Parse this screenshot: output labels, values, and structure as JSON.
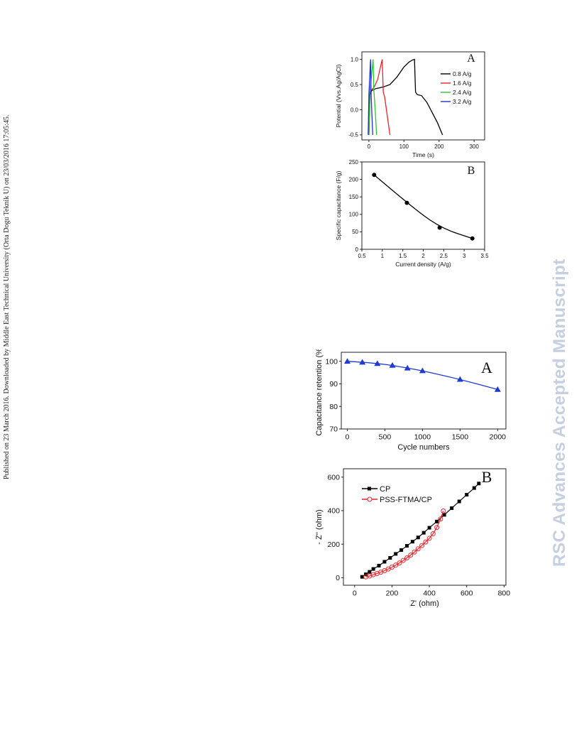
{
  "side_note": "Published on 23 March 2016. Downloaded by Middle East Technical University (Orta Dogu Teknik U) on 23/03/2016 17:05:45.",
  "watermark": "RSC Advances Accepted Manuscript",
  "chart_data": [
    {
      "id": "fig1a",
      "panel_label": "A",
      "type": "line",
      "xlabel": "Time (s)",
      "ylabel": "Potential (Vvs.Ag/AgCl)",
      "xlim": [
        -20,
        330
      ],
      "ylim": [
        -0.6,
        1.15
      ],
      "xticks": [
        0,
        100,
        200,
        300
      ],
      "yticks": [
        -0.5,
        0.0,
        0.5,
        1.0
      ],
      "ytick_labels": [
        "-0.5",
        "0.0",
        "0.5",
        "1.0"
      ],
      "legend_position": "top-right",
      "series": [
        {
          "name": "0.8 A/g",
          "color": "#000000",
          "x": [
            0,
            3,
            8,
            20,
            40,
            60,
            80,
            100,
            115,
            125,
            130,
            133,
            138,
            150,
            165,
            180,
            195,
            210
          ],
          "y": [
            -0.5,
            0.3,
            0.38,
            0.42,
            0.45,
            0.5,
            0.65,
            0.85,
            0.95,
            0.99,
            1.0,
            0.35,
            0.3,
            0.28,
            0.15,
            -0.05,
            -0.25,
            -0.5
          ]
        },
        {
          "name": "1.6 A/g",
          "color": "#e8232a",
          "x": [
            0,
            2,
            6,
            15,
            25,
            33,
            38,
            41,
            45,
            50,
            55,
            60
          ],
          "y": [
            -0.5,
            0.3,
            0.38,
            0.45,
            0.6,
            0.85,
            1.0,
            0.35,
            0.25,
            0.0,
            -0.25,
            -0.5
          ]
        },
        {
          "name": "2.4 A/g",
          "color": "#2fc32f",
          "x": [
            0,
            2,
            5,
            10,
            12,
            14,
            18,
            22
          ],
          "y": [
            -0.5,
            0.35,
            0.5,
            0.85,
            1.0,
            0.4,
            0.0,
            -0.5
          ]
        },
        {
          "name": "3.2 A/g",
          "color": "#1f2fd6",
          "x": [
            -2,
            0,
            2,
            4,
            5,
            6,
            8,
            11
          ],
          "y": [
            -0.5,
            0.3,
            0.6,
            0.9,
            1.0,
            0.4,
            0.0,
            -0.5
          ]
        }
      ]
    },
    {
      "id": "fig1b",
      "panel_label": "B",
      "type": "scatter",
      "xlabel": "Current density (A/g)",
      "ylabel": "Specific capacitance (F/g)",
      "xlim": [
        0.5,
        3.5
      ],
      "ylim": [
        0,
        250
      ],
      "xticks": [
        0.5,
        1.0,
        1.5,
        2.0,
        2.5,
        3.0,
        3.5
      ],
      "yticks": [
        0,
        50,
        100,
        150,
        200,
        250
      ],
      "series": [
        {
          "color": "#000000",
          "x": [
            0.8,
            1.6,
            2.4,
            3.2
          ],
          "y": [
            213,
            133,
            62,
            31
          ]
        }
      ]
    },
    {
      "id": "fig2a",
      "panel_label": "A",
      "type": "scatter",
      "xlabel": "Cycle numbers",
      "ylabel": "Capacitance retention (%)",
      "xlim": [
        -80,
        2110
      ],
      "ylim": [
        70,
        104
      ],
      "xticks": [
        0,
        500,
        1000,
        1500,
        2000
      ],
      "yticks": [
        70,
        80,
        90,
        100
      ],
      "series": [
        {
          "color": "#1f3ad0",
          "x": [
            0,
            200,
            400,
            600,
            800,
            1000,
            1500,
            2000
          ],
          "y": [
            100,
            99.6,
            99,
            98.2,
            97,
            95.8,
            92,
            87.5
          ]
        }
      ]
    },
    {
      "id": "fig2b",
      "panel_label": "B",
      "type": "scatter",
      "xlabel": "Z' (ohm)",
      "ylabel": "- Z'' (ohm)",
      "xlim": [
        -60,
        810
      ],
      "ylim": [
        -45,
        650
      ],
      "xticks": [
        0,
        200,
        400,
        600,
        800
      ],
      "yticks": [
        0,
        200,
        400,
        600
      ],
      "legend_position": "top-left",
      "series": [
        {
          "name": "CP",
          "color": "#000000",
          "x": [
            40,
            60,
            80,
            100,
            130,
            160,
            190,
            220,
            250,
            280,
            310,
            340,
            370,
            400,
            440,
            480,
            520,
            560,
            600,
            640,
            665
          ],
          "y": [
            5,
            20,
            35,
            52,
            72,
            95,
            118,
            142,
            165,
            190,
            215,
            240,
            268,
            298,
            335,
            375,
            415,
            455,
            495,
            535,
            562
          ]
        },
        {
          "name": "PSS-FTMA/CP",
          "color": "#e8232a",
          "x": [
            60,
            80,
            100,
            120,
            140,
            160,
            180,
            200,
            220,
            240,
            260,
            280,
            300,
            320,
            340,
            360,
            380,
            400,
            420,
            440,
            460,
            475
          ],
          "y": [
            5,
            10,
            18,
            25,
            33,
            42,
            52,
            63,
            75,
            88,
            103,
            118,
            135,
            153,
            172,
            192,
            213,
            235,
            262,
            300,
            350,
            398
          ]
        }
      ]
    }
  ]
}
